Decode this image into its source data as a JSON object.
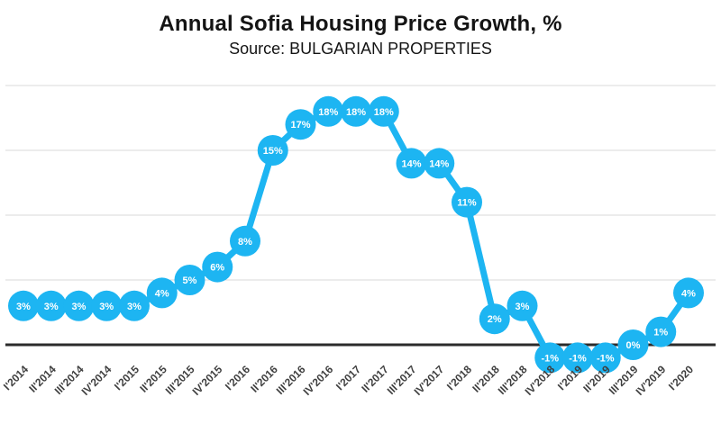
{
  "chart_data": {
    "type": "line",
    "title": "Annual Sofia Housing Price Growth, %",
    "subtitle": "Source: BULGARIAN PROPERTIES",
    "categories": [
      "I'2014",
      "II'2014",
      "III'2014",
      "IV'2014",
      "I'2015",
      "II'2015",
      "III'2015",
      "IV'2015",
      "I'2016",
      "II'2016",
      "III'2016",
      "IV'2016",
      "I'2017",
      "II'2017",
      "III'2017",
      "IV'2017",
      "I'2018",
      "II'2018",
      "III'2018",
      "IV'2018",
      "I'2019",
      "II'2019",
      "III'2019",
      "IV'2019",
      "I'2020"
    ],
    "values": [
      3,
      3,
      3,
      3,
      3,
      4,
      5,
      6,
      8,
      15,
      17,
      18,
      18,
      18,
      14,
      14,
      11,
      2,
      3,
      -1,
      -1,
      -1,
      0,
      1,
      4
    ],
    "data_labels": [
      "3%",
      "3%",
      "3%",
      "3%",
      "3%",
      "4%",
      "5%",
      "6%",
      "8%",
      "15%",
      "17%",
      "18%",
      "18%",
      "18%",
      "14%",
      "14%",
      "11%",
      "2%",
      "3%",
      "-1%",
      "-1%",
      "-1%",
      "0%",
      "1%",
      "4%"
    ],
    "ylim": [
      -3,
      21
    ],
    "gridline_values": [
      0,
      5,
      10,
      15,
      20
    ],
    "grid": true,
    "legend": "none",
    "xlabel": "",
    "ylabel": "",
    "line_color": "#1db5f2",
    "marker_color": "#1db5f2",
    "marker_label_color": "#ffffff",
    "zero_line_color": "#2b2b2b",
    "gridline_color": "#d9d9d9",
    "axis_label_color": "#3f3f3f",
    "title_color": "#141414",
    "background_color": "#ffffff"
  }
}
